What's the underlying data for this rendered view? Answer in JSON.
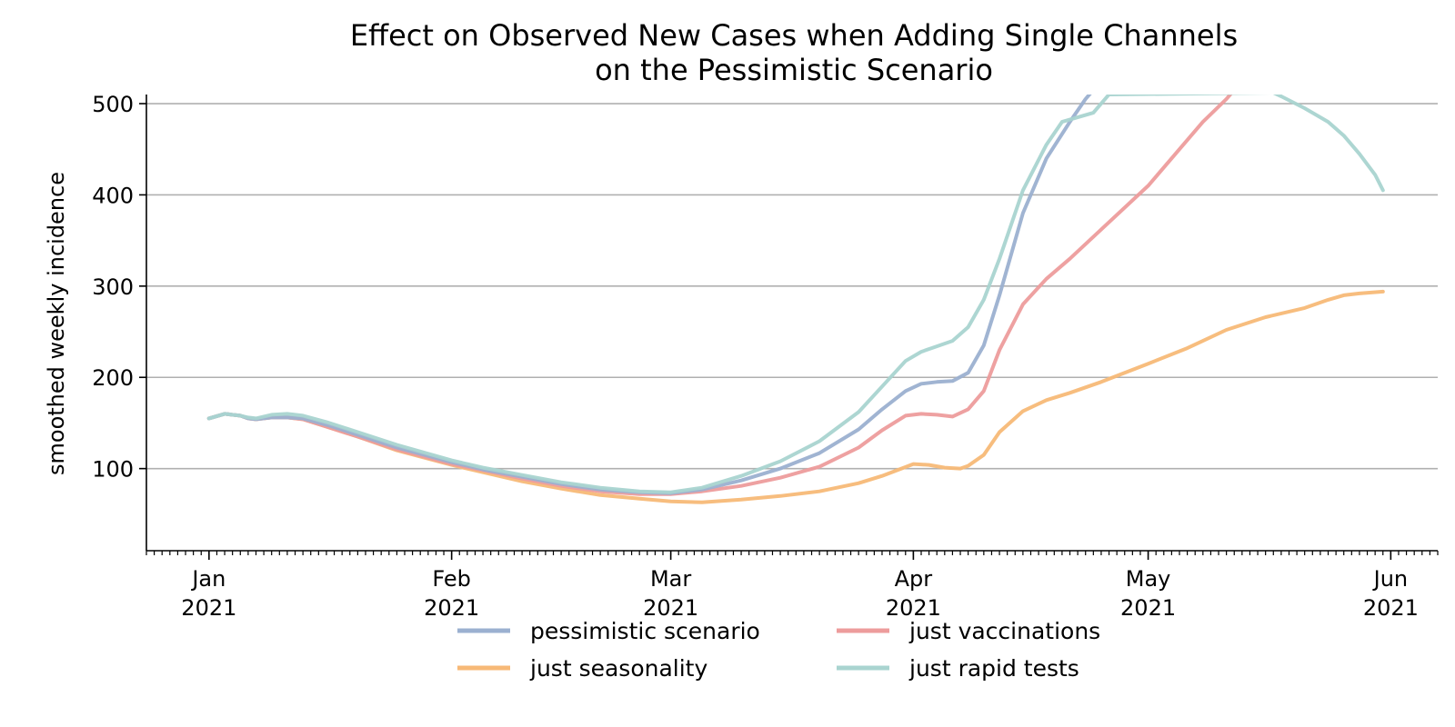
{
  "chart_data": {
    "type": "line",
    "title_lines": [
      "Effect on Observed New Cases when Adding Single Channels",
      "on the Pessimistic Scenario"
    ],
    "ylabel": "smoothed weekly incidence",
    "xlim": [
      "2020-12-24",
      "2021-06-07"
    ],
    "ylim": [
      10,
      510
    ],
    "yticks": [
      "100",
      "200",
      "300",
      "400",
      "500"
    ],
    "xticks": [
      {
        "date": "2021-01-01",
        "label1": "Jan",
        "label2": "2021"
      },
      {
        "date": "2021-02-01",
        "label1": "Feb",
        "label2": "2021"
      },
      {
        "date": "2021-03-01",
        "label1": "Mar",
        "label2": "2021"
      },
      {
        "date": "2021-04-01",
        "label1": "Apr",
        "label2": "2021"
      },
      {
        "date": "2021-05-01",
        "label1": "May",
        "label2": "2021"
      },
      {
        "date": "2021-06-01",
        "label1": "Jun",
        "label2": "2021"
      }
    ],
    "grid": "horizontal",
    "legend_position": "bottom-center",
    "series": [
      {
        "name": "just seasonality",
        "color": "#f7b977",
        "points": [
          [
            "2021-01-01",
            155
          ],
          [
            "2021-01-03",
            160
          ],
          [
            "2021-01-05",
            158
          ],
          [
            "2021-01-06",
            155
          ],
          [
            "2021-01-07",
            154
          ],
          [
            "2021-01-09",
            156
          ],
          [
            "2021-01-11",
            156
          ],
          [
            "2021-01-13",
            154
          ],
          [
            "2021-01-16",
            146
          ],
          [
            "2021-01-20",
            135
          ],
          [
            "2021-01-25",
            120
          ],
          [
            "2021-02-01",
            104
          ],
          [
            "2021-02-05",
            96
          ],
          [
            "2021-02-10",
            86
          ],
          [
            "2021-02-15",
            78
          ],
          [
            "2021-02-20",
            71
          ],
          [
            "2021-02-25",
            67
          ],
          [
            "2021-03-01",
            64
          ],
          [
            "2021-03-05",
            63
          ],
          [
            "2021-03-10",
            66
          ],
          [
            "2021-03-15",
            70
          ],
          [
            "2021-03-20",
            75
          ],
          [
            "2021-03-25",
            84
          ],
          [
            "2021-03-28",
            92
          ],
          [
            "2021-04-01",
            105
          ],
          [
            "2021-04-03",
            104
          ],
          [
            "2021-04-05",
            101
          ],
          [
            "2021-04-07",
            100
          ],
          [
            "2021-04-08",
            103
          ],
          [
            "2021-04-10",
            115
          ],
          [
            "2021-04-12",
            140
          ],
          [
            "2021-04-15",
            163
          ],
          [
            "2021-04-18",
            175
          ],
          [
            "2021-04-21",
            183
          ],
          [
            "2021-04-25",
            195
          ],
          [
            "2021-05-01",
            215
          ],
          [
            "2021-05-06",
            232
          ],
          [
            "2021-05-11",
            252
          ],
          [
            "2021-05-16",
            266
          ],
          [
            "2021-05-21",
            276
          ],
          [
            "2021-05-24",
            285
          ],
          [
            "2021-05-26",
            290
          ],
          [
            "2021-05-28",
            292
          ],
          [
            "2021-05-31",
            294
          ]
        ]
      },
      {
        "name": "just vaccinations",
        "color": "#ed9c9c",
        "points": [
          [
            "2021-01-01",
            155
          ],
          [
            "2021-01-03",
            160
          ],
          [
            "2021-01-05",
            158
          ],
          [
            "2021-01-06",
            155
          ],
          [
            "2021-01-07",
            154
          ],
          [
            "2021-01-09",
            156
          ],
          [
            "2021-01-11",
            156
          ],
          [
            "2021-01-13",
            154
          ],
          [
            "2021-01-16",
            146
          ],
          [
            "2021-01-20",
            135
          ],
          [
            "2021-01-25",
            121
          ],
          [
            "2021-02-01",
            105
          ],
          [
            "2021-02-05",
            98
          ],
          [
            "2021-02-10",
            89
          ],
          [
            "2021-02-15",
            81
          ],
          [
            "2021-02-20",
            75
          ],
          [
            "2021-02-25",
            72
          ],
          [
            "2021-03-01",
            72
          ],
          [
            "2021-03-05",
            75
          ],
          [
            "2021-03-10",
            81
          ],
          [
            "2021-03-15",
            90
          ],
          [
            "2021-03-20",
            102
          ],
          [
            "2021-03-25",
            123
          ],
          [
            "2021-03-28",
            142
          ],
          [
            "2021-03-31",
            158
          ],
          [
            "2021-04-02",
            160
          ],
          [
            "2021-04-04",
            159
          ],
          [
            "2021-04-06",
            157
          ],
          [
            "2021-04-08",
            165
          ],
          [
            "2021-04-10",
            185
          ],
          [
            "2021-04-12",
            230
          ],
          [
            "2021-04-15",
            280
          ],
          [
            "2021-04-18",
            308
          ],
          [
            "2021-04-21",
            330
          ],
          [
            "2021-04-25",
            362
          ],
          [
            "2021-05-01",
            410
          ],
          [
            "2021-05-05",
            450
          ],
          [
            "2021-05-08",
            480
          ],
          [
            "2021-05-11",
            505
          ],
          [
            "2021-05-12",
            515
          ]
        ]
      },
      {
        "name": "pessimistic scenario",
        "color": "#9bb0d0",
        "points": [
          [
            "2021-01-01",
            155
          ],
          [
            "2021-01-03",
            160
          ],
          [
            "2021-01-05",
            158
          ],
          [
            "2021-01-06",
            155
          ],
          [
            "2021-01-07",
            154
          ],
          [
            "2021-01-09",
            156
          ],
          [
            "2021-01-11",
            156
          ],
          [
            "2021-01-13",
            155
          ],
          [
            "2021-01-16",
            148
          ],
          [
            "2021-01-20",
            137
          ],
          [
            "2021-01-25",
            123
          ],
          [
            "2021-02-01",
            107
          ],
          [
            "2021-02-05",
            99
          ],
          [
            "2021-02-10",
            91
          ],
          [
            "2021-02-15",
            83
          ],
          [
            "2021-02-20",
            77
          ],
          [
            "2021-02-25",
            74
          ],
          [
            "2021-03-01",
            73
          ],
          [
            "2021-03-05",
            77
          ],
          [
            "2021-03-10",
            87
          ],
          [
            "2021-03-15",
            100
          ],
          [
            "2021-03-20",
            117
          ],
          [
            "2021-03-25",
            143
          ],
          [
            "2021-03-28",
            165
          ],
          [
            "2021-03-31",
            185
          ],
          [
            "2021-04-02",
            193
          ],
          [
            "2021-04-04",
            195
          ],
          [
            "2021-04-06",
            196
          ],
          [
            "2021-04-08",
            205
          ],
          [
            "2021-04-10",
            235
          ],
          [
            "2021-04-12",
            290
          ],
          [
            "2021-04-15",
            380
          ],
          [
            "2021-04-18",
            440
          ],
          [
            "2021-04-21",
            480
          ],
          [
            "2021-04-23",
            505
          ],
          [
            "2021-04-24",
            515
          ]
        ]
      },
      {
        "name": "just rapid tests",
        "color": "#a9d4d0",
        "points": [
          [
            "2021-01-01",
            155
          ],
          [
            "2021-01-03",
            160
          ],
          [
            "2021-01-05",
            158
          ],
          [
            "2021-01-06",
            156
          ],
          [
            "2021-01-07",
            155
          ],
          [
            "2021-01-09",
            159
          ],
          [
            "2021-01-11",
            160
          ],
          [
            "2021-01-13",
            158
          ],
          [
            "2021-01-16",
            151
          ],
          [
            "2021-01-20",
            140
          ],
          [
            "2021-01-25",
            126
          ],
          [
            "2021-02-01",
            109
          ],
          [
            "2021-02-05",
            101
          ],
          [
            "2021-02-10",
            93
          ],
          [
            "2021-02-15",
            85
          ],
          [
            "2021-02-20",
            79
          ],
          [
            "2021-02-25",
            75
          ],
          [
            "2021-03-01",
            74
          ],
          [
            "2021-03-05",
            79
          ],
          [
            "2021-03-10",
            92
          ],
          [
            "2021-03-15",
            108
          ],
          [
            "2021-03-20",
            130
          ],
          [
            "2021-03-25",
            162
          ],
          [
            "2021-03-28",
            190
          ],
          [
            "2021-03-31",
            218
          ],
          [
            "2021-04-02",
            228
          ],
          [
            "2021-04-04",
            234
          ],
          [
            "2021-04-06",
            240
          ],
          [
            "2021-04-08",
            255
          ],
          [
            "2021-04-10",
            285
          ],
          [
            "2021-04-12",
            330
          ],
          [
            "2021-04-15",
            405
          ],
          [
            "2021-04-18",
            455
          ],
          [
            "2021-04-20",
            480
          ],
          [
            "2021-04-22",
            485
          ],
          [
            "2021-04-24",
            490
          ],
          [
            "2021-04-26",
            510
          ],
          [
            "2021-05-17",
            512
          ],
          [
            "2021-05-18",
            508
          ],
          [
            "2021-05-21",
            495
          ],
          [
            "2021-05-24",
            480
          ],
          [
            "2021-05-26",
            465
          ],
          [
            "2021-05-28",
            445
          ],
          [
            "2021-05-30",
            422
          ],
          [
            "2021-05-31",
            405
          ]
        ]
      }
    ],
    "legend": [
      {
        "label": "pessimistic scenario",
        "color": "#9bb0d0"
      },
      {
        "label": "just vaccinations",
        "color": "#ed9c9c"
      },
      {
        "label": "just seasonality",
        "color": "#f7b977"
      },
      {
        "label": "just rapid tests",
        "color": "#a9d4d0"
      }
    ]
  }
}
